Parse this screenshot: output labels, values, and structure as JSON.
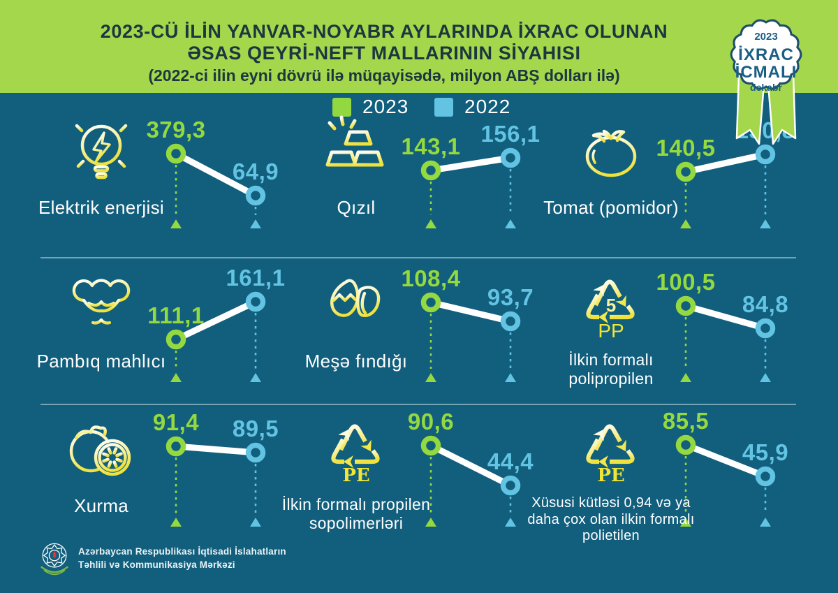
{
  "header": {
    "title_line1": "2023-CÜ İLİN YANVAR-NOYABR AYLARINDA İXRAC OLUNAN",
    "title_line2": "ƏSAS QEYRİ-NEFT MALLARININ SİYAHISI",
    "subtitle": "(2022-ci ilin eyni dövrü ilə müqayisədə, milyon ABŞ dolları ilə)"
  },
  "badge": {
    "year": "2023",
    "line1": "İXRAC",
    "line2": "İCMALI",
    "month": "dekabr"
  },
  "legend": [
    {
      "label": "2023",
      "color": "#92d840"
    },
    {
      "label": "2022",
      "color": "#62c3e2"
    }
  ],
  "colors": {
    "background": "#115e7d",
    "header_green": "#a4d74b",
    "value_2023": "#94d93f",
    "value_2022": "#62c3e2",
    "icon_yellow": "#efe23e",
    "title_text": "#1d3640",
    "badge_text": "#1a5e85"
  },
  "footer": {
    "org_line1": "Azərbaycan Respublikası İqtisadi İslahatların",
    "org_line2": "Təhlili və Kommunikasiya Mərkəzi"
  },
  "chart_data": {
    "type": "line",
    "subtype": "slope-pairs",
    "title": "2023-cü ilin yanvar-noyabr aylarında ixrac olunan əsas qeyri-neft mallarının siyahısı",
    "unit": "milyon ABŞ dolları",
    "legend_entries": [
      "2023",
      "2022"
    ],
    "items": [
      {
        "name": "Elektrik enerjisi",
        "icon": "lightbulb-icon",
        "value_2023": 379.3,
        "value_2022": 64.9,
        "label_2023": "379,3",
        "label_2022": "64,9"
      },
      {
        "name": "Qızıl",
        "icon": "gold-bars-icon",
        "value_2023": 143.1,
        "value_2022": 156.1,
        "label_2023": "143,1",
        "label_2022": "156,1"
      },
      {
        "name": "Tomat (pomidor)",
        "icon": "tomato-icon",
        "value_2023": 140.5,
        "value_2022": 150.8,
        "label_2023": "140,5",
        "label_2022": "150,8"
      },
      {
        "name": "Pambıq mahlıcı",
        "icon": "cotton-icon",
        "value_2023": 111.1,
        "value_2022": 161.1,
        "label_2023": "111,1",
        "label_2022": "161,1"
      },
      {
        "name": "Meşə fındığı",
        "icon": "hazelnut-icon",
        "value_2023": 108.4,
        "value_2022": 93.7,
        "label_2023": "108,4",
        "label_2022": "93,7"
      },
      {
        "name": "İlkin formalı polipropilen",
        "icon": "recycle-pp-icon",
        "icon_number": "5",
        "icon_code": "PP",
        "value_2023": 100.5,
        "value_2022": 84.8,
        "label_2023": "100,5",
        "label_2022": "84,8"
      },
      {
        "name": "Xurma",
        "icon": "persimmon-icon",
        "value_2023": 91.4,
        "value_2022": 89.5,
        "label_2023": "91,4",
        "label_2022": "89,5"
      },
      {
        "name": "İlkin formalı propilen sopolimerləri",
        "icon": "recycle-pe-icon",
        "icon_code": "PE",
        "value_2023": 90.6,
        "value_2022": 44.4,
        "label_2023": "90,6",
        "label_2022": "44,4"
      },
      {
        "name": "Xüsusi kütləsi 0,94 və ya daha çox olan ilkin formalı polietilen",
        "icon": "recycle-pe-icon",
        "icon_code": "PE",
        "value_2023": 85.5,
        "value_2022": 45.9,
        "label_2023": "85,5",
        "label_2022": "45,9"
      }
    ]
  }
}
